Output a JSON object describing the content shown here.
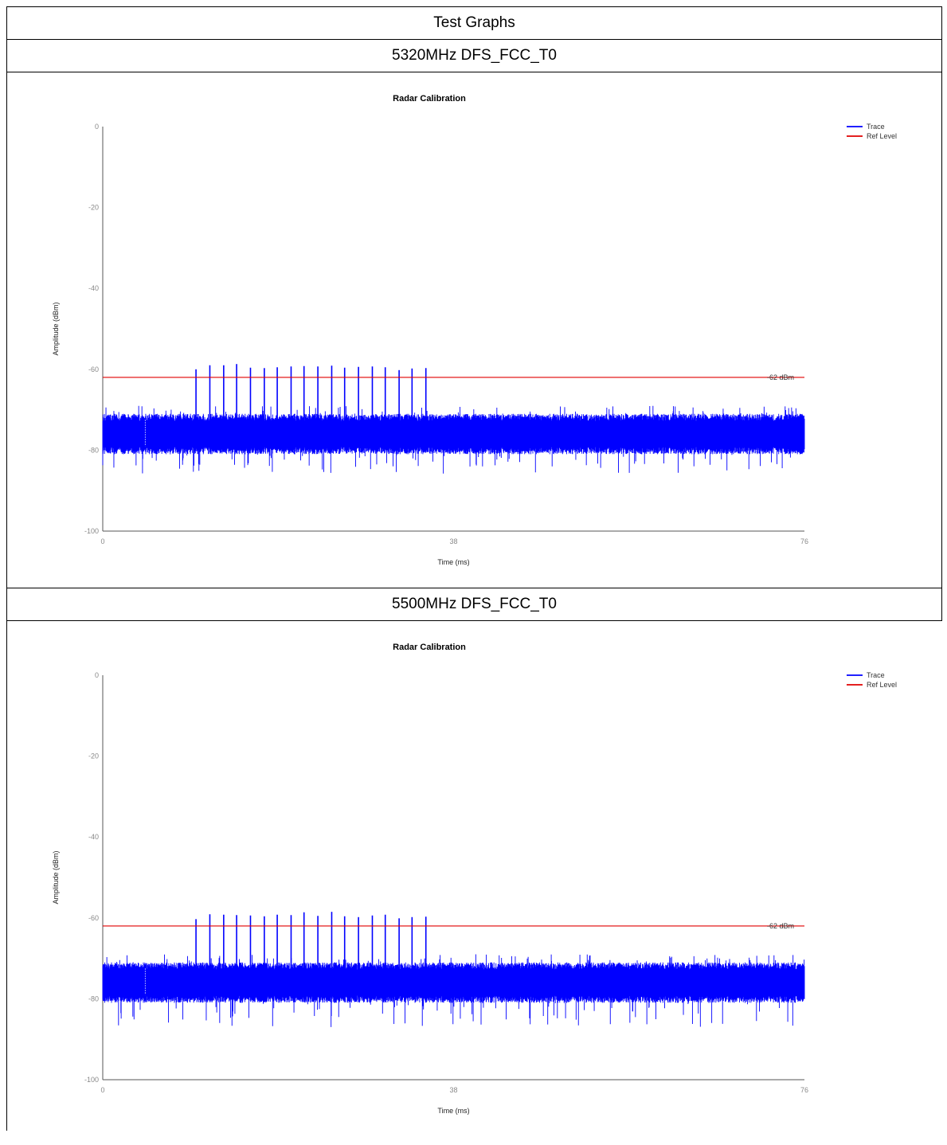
{
  "header": {
    "title": "Test Graphs"
  },
  "sections": [
    {
      "label": "5320MHz DFS_FCC_T0"
    },
    {
      "label": "5500MHz DFS_FCC_T0"
    }
  ],
  "chart_data": [
    {
      "type": "line",
      "title": "Radar Calibration",
      "xlabel": "Time (ms)",
      "ylabel": "Amplitude (dBm)",
      "xlim": [
        0,
        76
      ],
      "ylim": [
        -100,
        0
      ],
      "xticks": [
        "0",
        "38",
        "76"
      ],
      "yticks": [
        "0",
        "-20",
        "-40",
        "-60",
        "-80",
        "-100"
      ],
      "legend": {
        "position": "top-right",
        "entries": [
          "Trace",
          "Ref Level"
        ]
      },
      "ref_level": {
        "value": -62,
        "label": "-62 dBm"
      },
      "noise_floor": {
        "mean": -76,
        "min": -86,
        "max": -69
      },
      "series": [
        {
          "name": "Trace",
          "color": "#0000ff",
          "pulse_times_ms": [
            10.1,
            11.6,
            13.1,
            14.5,
            16.0,
            17.5,
            18.9,
            20.4,
            21.8,
            23.3,
            24.8,
            26.2,
            27.7,
            29.2,
            30.6,
            32.1,
            33.5,
            35.0
          ],
          "pulse_peaks_dbm": [
            -60,
            -59,
            -59,
            -58.7,
            -59.6,
            -59.7,
            -59.5,
            -59.3,
            -59.2,
            -59.3,
            -59.1,
            -59.6,
            -59.4,
            -59.3,
            -59.5,
            -60.2,
            -59.8,
            -59.7
          ]
        },
        {
          "name": "Ref Level",
          "color": "#e00000",
          "values": [
            -62,
            -62
          ]
        }
      ]
    },
    {
      "type": "line",
      "title": "Radar Calibration",
      "xlabel": "Time (ms)",
      "ylabel": "Amplitude (dBm)",
      "xlim": [
        0,
        76
      ],
      "ylim": [
        -100,
        0
      ],
      "xticks": [
        "0",
        "38",
        "76"
      ],
      "yticks": [
        "0",
        "-20",
        "-40",
        "-60",
        "-80",
        "-100"
      ],
      "legend": {
        "position": "top-right",
        "entries": [
          "Trace",
          "Ref Level"
        ]
      },
      "ref_level": {
        "value": -62,
        "label": "-62 dBm"
      },
      "noise_floor": {
        "mean": -76,
        "min": -87,
        "max": -69
      },
      "series": [
        {
          "name": "Trace",
          "color": "#0000ff",
          "pulse_times_ms": [
            10.1,
            11.6,
            13.1,
            14.5,
            16.0,
            17.5,
            18.9,
            20.4,
            21.8,
            23.3,
            24.8,
            26.2,
            27.7,
            29.2,
            30.6,
            32.1,
            33.5,
            35.0
          ],
          "pulse_peaks_dbm": [
            -60.3,
            -59.1,
            -59.2,
            -59.3,
            -59.4,
            -59.6,
            -59.2,
            -59.3,
            -58.6,
            -59.5,
            -58.5,
            -59.6,
            -59.8,
            -59.4,
            -59.2,
            -60.1,
            -59.8,
            -59.7
          ]
        },
        {
          "name": "Ref Level",
          "color": "#e00000",
          "values": [
            -62,
            -62
          ]
        }
      ]
    }
  ]
}
